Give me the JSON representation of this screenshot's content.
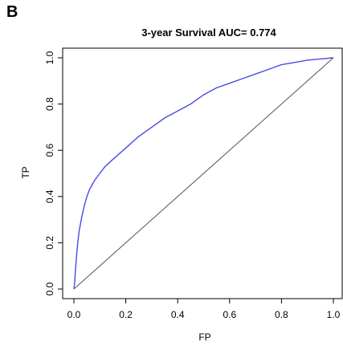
{
  "panel_label": "B",
  "chart_data": {
    "type": "line",
    "title": "3-year Survival AUC= 0.774",
    "xlabel": "FP",
    "ylabel": "TP",
    "xlim": [
      0,
      1
    ],
    "ylim": [
      0,
      1
    ],
    "xticks": [
      0.0,
      0.2,
      0.4,
      0.6,
      0.8,
      1.0
    ],
    "yticks": [
      0.0,
      0.2,
      0.4,
      0.6,
      0.8,
      1.0
    ],
    "xtick_labels": [
      "0.0",
      "0.2",
      "0.4",
      "0.6",
      "0.8",
      "1.0"
    ],
    "ytick_labels": [
      "0.0",
      "0.2",
      "0.4",
      "0.6",
      "0.8",
      "1.0"
    ],
    "grid": false,
    "series": [
      {
        "color": "#4a4ae6",
        "x": [
          0.0,
          0.003,
          0.006,
          0.01,
          0.015,
          0.02,
          0.03,
          0.04,
          0.05,
          0.06,
          0.07,
          0.08,
          0.1,
          0.12,
          0.15,
          0.2,
          0.25,
          0.3,
          0.35,
          0.4,
          0.45,
          0.5,
          0.55,
          0.6,
          0.65,
          0.7,
          0.75,
          0.8,
          0.85,
          0.9,
          0.95,
          1.0
        ],
        "y": [
          0.0,
          0.03,
          0.08,
          0.14,
          0.2,
          0.25,
          0.31,
          0.36,
          0.4,
          0.43,
          0.45,
          0.47,
          0.5,
          0.53,
          0.56,
          0.61,
          0.66,
          0.7,
          0.74,
          0.77,
          0.8,
          0.84,
          0.87,
          0.89,
          0.91,
          0.93,
          0.95,
          0.97,
          0.98,
          0.99,
          0.995,
          1.0
        ]
      },
      {
        "color": "#555555",
        "x": [
          0.0,
          1.0
        ],
        "y": [
          0.0,
          1.0
        ]
      }
    ]
  }
}
